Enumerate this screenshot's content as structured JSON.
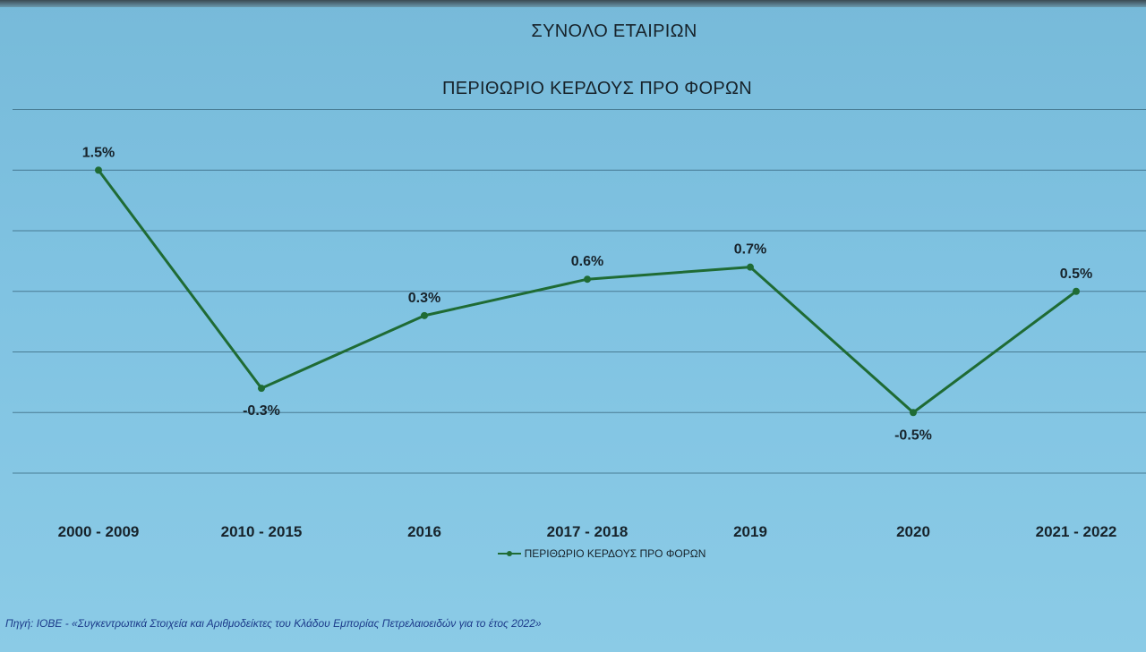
{
  "title": "ΣΥΝΟΛΟ ΕΤΑΙΡΙΩΝ",
  "subtitle": "ΠΕΡΙΘΩΡΙΟ ΚΕΡΔΟΥΣ ΠΡΟ ΦΟΡΩΝ",
  "source": "Πηγή: ΙΟΒΕ - «Συγκεντρωτικά Στοιχεία και Αριθμοδείκτες του Κλάδου Εμπορίας Πετρελαιοειδών για το έτος 2022»",
  "colors": {
    "line": "#1f6b34",
    "grid": "#3f6f86",
    "text": "#17232b",
    "source": "#1b3a8a"
  },
  "chart_data": {
    "type": "line",
    "title": "ΣΥΝΟΛΟ ΕΤΑΙΡΙΩΝ",
    "subtitle": "ΠΕΡΙΘΩΡΙΟ ΚΕΡΔΟΥΣ ΠΡΟ ΦΟΡΩΝ",
    "categories": [
      "2000 - 2009",
      "2010 - 2015",
      "2016",
      "2017 - 2018",
      "2019",
      "2020",
      "2021 - 2022"
    ],
    "series": [
      {
        "name": "ΠΕΡΙΘΩΡΙΟ ΚΕΡΔΟΥΣ ΠΡΟ ΦΟΡΩΝ",
        "values": [
          1.5,
          -0.3,
          0.3,
          0.6,
          0.7,
          -0.5,
          0.5
        ],
        "labels": [
          "1.5%",
          "-0.3%",
          "0.3%",
          "0.6%",
          "0.7%",
          "-0.5%",
          "0.5%"
        ]
      }
    ],
    "ylim": [
      -1.0,
      2.0
    ],
    "grid": true,
    "legend": "bottom-center"
  }
}
